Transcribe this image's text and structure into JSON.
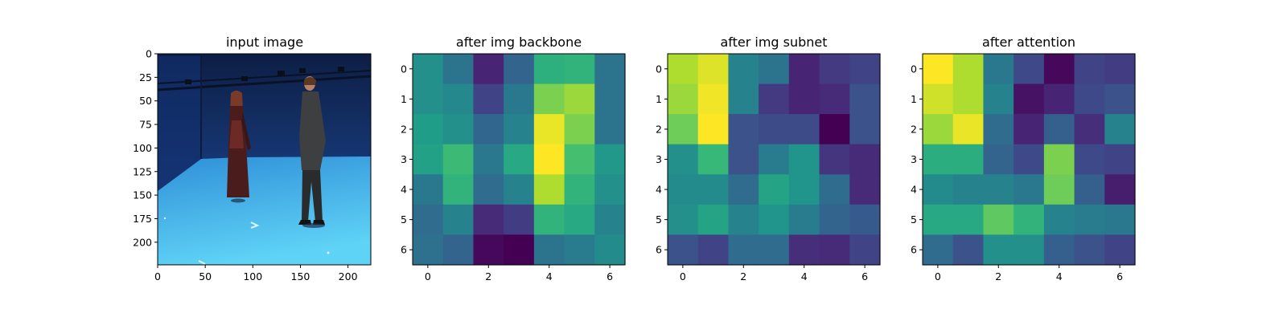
{
  "chart_data": [
    {
      "type": "image",
      "title": "input image",
      "xticks": [
        0,
        50,
        100,
        150,
        200
      ],
      "yticks": [
        0,
        25,
        50,
        75,
        100,
        125,
        150,
        175,
        200
      ],
      "xlim": [
        0,
        224
      ],
      "ylim": [
        224,
        0
      ],
      "scene": {
        "subjects": [
          "woman in dark red dress",
          "man in dark jacket and trousers"
        ],
        "colors": {
          "wall_top": "#0d1e45",
          "wall_bottom": "#1f4fa0",
          "floor_far": "#2f8fd8",
          "floor_near": "#5fd3f6"
        }
      }
    },
    {
      "type": "heatmap",
      "title": "after img backbone",
      "colormap": "viridis",
      "xticks": [
        0,
        2,
        4,
        6
      ],
      "yticks": [
        0,
        1,
        2,
        3,
        4,
        5,
        6
      ],
      "values": [
        [
          0.5,
          0.38,
          0.1,
          0.32,
          0.63,
          0.65,
          0.38
        ],
        [
          0.5,
          0.47,
          0.2,
          0.4,
          0.8,
          0.85,
          0.38
        ],
        [
          0.55,
          0.5,
          0.33,
          0.45,
          0.97,
          0.8,
          0.38
        ],
        [
          0.57,
          0.68,
          0.4,
          0.6,
          1.0,
          0.7,
          0.53
        ],
        [
          0.4,
          0.65,
          0.35,
          0.45,
          0.88,
          0.65,
          0.5
        ],
        [
          0.35,
          0.45,
          0.12,
          0.18,
          0.65,
          0.6,
          0.45
        ],
        [
          0.37,
          0.32,
          0.02,
          0.0,
          0.38,
          0.42,
          0.48
        ]
      ]
    },
    {
      "type": "heatmap",
      "title": "after img subnet",
      "colormap": "viridis",
      "xticks": [
        0,
        2,
        4,
        6
      ],
      "yticks": [
        0,
        1,
        2,
        3,
        4,
        5,
        6
      ],
      "values": [
        [
          0.88,
          0.95,
          0.45,
          0.38,
          0.1,
          0.17,
          0.2
        ],
        [
          0.85,
          0.98,
          0.45,
          0.17,
          0.1,
          0.12,
          0.25
        ],
        [
          0.78,
          1.0,
          0.25,
          0.23,
          0.23,
          0.0,
          0.25
        ],
        [
          0.5,
          0.67,
          0.25,
          0.42,
          0.52,
          0.15,
          0.12
        ],
        [
          0.48,
          0.48,
          0.35,
          0.58,
          0.52,
          0.35,
          0.12
        ],
        [
          0.5,
          0.58,
          0.45,
          0.52,
          0.42,
          0.32,
          0.28
        ],
        [
          0.25,
          0.2,
          0.35,
          0.35,
          0.13,
          0.12,
          0.2
        ]
      ]
    },
    {
      "type": "heatmap",
      "title": "after attention",
      "colormap": "viridis",
      "xticks": [
        0,
        2,
        4,
        6
      ],
      "yticks": [
        0,
        1,
        2,
        3,
        4,
        5,
        6
      ],
      "values": [
        [
          1.0,
          0.88,
          0.4,
          0.22,
          0.02,
          0.2,
          0.18
        ],
        [
          0.93,
          0.88,
          0.45,
          0.05,
          0.1,
          0.22,
          0.25
        ],
        [
          0.85,
          0.97,
          0.35,
          0.1,
          0.3,
          0.13,
          0.45
        ],
        [
          0.62,
          0.62,
          0.32,
          0.22,
          0.8,
          0.22,
          0.2
        ],
        [
          0.48,
          0.45,
          0.45,
          0.4,
          0.78,
          0.3,
          0.08
        ],
        [
          0.6,
          0.6,
          0.75,
          0.65,
          0.45,
          0.42,
          0.4
        ],
        [
          0.35,
          0.25,
          0.5,
          0.5,
          0.3,
          0.25,
          0.2
        ]
      ]
    }
  ]
}
